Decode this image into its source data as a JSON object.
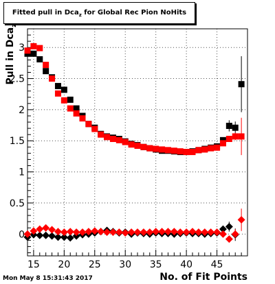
{
  "header": {
    "title_main": "Fitted pull in Dca",
    "title_sub": "z",
    "title_rest": " for Global Rec Pion NoHits"
  },
  "footer": {
    "datestamp": "Mon May  8 15:31:43 2017"
  },
  "chart_data": {
    "type": "scatter",
    "title": "Fitted pull in Dcaz for Global Rec Pion NoHits",
    "xlabel": "No. of Fit Points",
    "ylabel": "Pull in Dcaz",
    "xlim": [
      14,
      50
    ],
    "ylim": [
      -0.35,
      3.3
    ],
    "x_ticks": [
      15,
      20,
      25,
      30,
      35,
      40,
      45
    ],
    "y_ticks": [
      0,
      0.5,
      1,
      1.5,
      2,
      2.5,
      3
    ],
    "grid": true,
    "legend": "none",
    "series": [
      {
        "marker": "square",
        "color": "#000000",
        "x": [
          14,
          15,
          16,
          17,
          18,
          19,
          20,
          21,
          22,
          23,
          24,
          25,
          26,
          27,
          28,
          29,
          30,
          31,
          32,
          33,
          34,
          35,
          36,
          37,
          38,
          39,
          40,
          41,
          42,
          43,
          44,
          45,
          46,
          47,
          48,
          49
        ],
        "values": [
          2.9,
          2.9,
          2.81,
          2.62,
          2.52,
          2.38,
          2.32,
          2.16,
          2.02,
          1.9,
          1.77,
          1.71,
          1.61,
          1.57,
          1.55,
          1.53,
          1.49,
          1.45,
          1.43,
          1.4,
          1.38,
          1.36,
          1.34,
          1.34,
          1.33,
          1.32,
          1.32,
          1.33,
          1.35,
          1.37,
          1.39,
          1.41,
          1.51,
          1.74,
          1.71,
          2.41
        ],
        "errors": [
          0.02,
          0.02,
          0.02,
          0.02,
          0.02,
          0.02,
          0.02,
          0.02,
          0.02,
          0.02,
          0.02,
          0.02,
          0.02,
          0.02,
          0.02,
          0.02,
          0.02,
          0.02,
          0.02,
          0.02,
          0.02,
          0.02,
          0.02,
          0.02,
          0.02,
          0.02,
          0.02,
          0.02,
          0.02,
          0.02,
          0.02,
          0.03,
          0.04,
          0.09,
          0.1,
          0.45
        ]
      },
      {
        "marker": "square",
        "color": "#ff0000",
        "x": [
          14,
          15,
          16,
          17,
          18,
          19,
          20,
          21,
          22,
          23,
          24,
          25,
          26,
          27,
          28,
          29,
          30,
          31,
          32,
          33,
          34,
          35,
          36,
          37,
          38,
          39,
          40,
          41,
          42,
          43,
          44,
          45,
          46,
          47,
          48,
          49
        ],
        "values": [
          2.95,
          3.02,
          2.99,
          2.72,
          2.5,
          2.26,
          2.15,
          2.02,
          1.94,
          1.86,
          1.77,
          1.69,
          1.6,
          1.56,
          1.53,
          1.51,
          1.48,
          1.44,
          1.42,
          1.4,
          1.38,
          1.37,
          1.36,
          1.35,
          1.34,
          1.33,
          1.32,
          1.32,
          1.35,
          1.36,
          1.38,
          1.39,
          1.46,
          1.53,
          1.57,
          1.57
        ],
        "errors": [
          0.02,
          0.02,
          0.02,
          0.02,
          0.02,
          0.02,
          0.02,
          0.02,
          0.02,
          0.02,
          0.02,
          0.02,
          0.02,
          0.02,
          0.02,
          0.02,
          0.02,
          0.02,
          0.02,
          0.02,
          0.02,
          0.02,
          0.02,
          0.02,
          0.02,
          0.02,
          0.02,
          0.02,
          0.02,
          0.02,
          0.02,
          0.02,
          0.03,
          0.04,
          0.06,
          0.3
        ]
      },
      {
        "marker": "diamond",
        "color": "#000000",
        "x": [
          14,
          15,
          16,
          17,
          18,
          19,
          20,
          21,
          22,
          23,
          24,
          25,
          26,
          27,
          28,
          29,
          30,
          31,
          32,
          33,
          34,
          35,
          36,
          37,
          38,
          39,
          40,
          41,
          42,
          43,
          44,
          45,
          46,
          47,
          48
        ],
        "values": [
          -0.05,
          -0.01,
          -0.02,
          -0.02,
          -0.03,
          -0.05,
          -0.05,
          -0.06,
          -0.03,
          -0.01,
          0.0,
          0.02,
          0.04,
          0.06,
          0.04,
          0.02,
          0.03,
          0.0,
          0.02,
          0.01,
          0.0,
          0.02,
          0.01,
          0.01,
          0.0,
          0.01,
          0.02,
          0.01,
          0.01,
          0.0,
          0.01,
          0.02,
          0.08,
          0.12,
          -0.01
        ],
        "errors": [
          0.02,
          0.02,
          0.02,
          0.02,
          0.02,
          0.02,
          0.02,
          0.02,
          0.02,
          0.02,
          0.02,
          0.02,
          0.02,
          0.02,
          0.02,
          0.02,
          0.02,
          0.02,
          0.02,
          0.02,
          0.02,
          0.02,
          0.02,
          0.02,
          0.02,
          0.02,
          0.02,
          0.02,
          0.02,
          0.02,
          0.02,
          0.02,
          0.04,
          0.08,
          0.1
        ]
      },
      {
        "marker": "diamond",
        "color": "#ff0000",
        "x": [
          14,
          15,
          16,
          17,
          18,
          19,
          20,
          21,
          22,
          23,
          24,
          25,
          26,
          27,
          28,
          29,
          30,
          31,
          32,
          33,
          34,
          35,
          36,
          37,
          38,
          39,
          40,
          41,
          42,
          43,
          44,
          45,
          46,
          47,
          48,
          49
        ],
        "values": [
          0.0,
          0.05,
          0.08,
          0.1,
          0.07,
          0.04,
          0.03,
          0.04,
          0.03,
          0.03,
          0.04,
          0.05,
          0.04,
          0.03,
          0.03,
          0.03,
          0.02,
          0.03,
          0.03,
          0.03,
          0.03,
          0.04,
          0.04,
          0.04,
          0.04,
          0.03,
          0.03,
          0.04,
          0.03,
          0.03,
          0.03,
          0.03,
          0.0,
          -0.08,
          0.0,
          0.23
        ],
        "errors": [
          0.02,
          0.02,
          0.02,
          0.02,
          0.02,
          0.02,
          0.02,
          0.02,
          0.02,
          0.02,
          0.02,
          0.02,
          0.02,
          0.02,
          0.02,
          0.02,
          0.02,
          0.02,
          0.02,
          0.02,
          0.02,
          0.02,
          0.02,
          0.02,
          0.02,
          0.02,
          0.02,
          0.02,
          0.02,
          0.02,
          0.02,
          0.02,
          0.03,
          0.05,
          0.08,
          0.18
        ]
      }
    ]
  }
}
